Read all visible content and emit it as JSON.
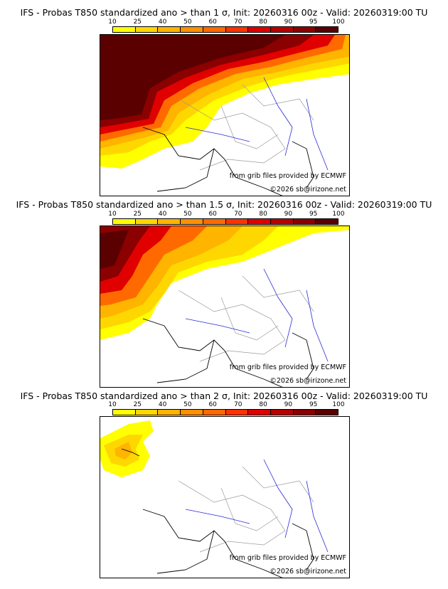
{
  "colorbar": {
    "labels": [
      "10",
      "25",
      "40",
      "50",
      "60",
      "70",
      "80",
      "90",
      "95",
      "100"
    ],
    "colors": [
      "#ffff00",
      "#ffd700",
      "#ffb400",
      "#ff9000",
      "#ff6a00",
      "#ff3300",
      "#e00000",
      "#b80000",
      "#8b0000",
      "#5a0000"
    ]
  },
  "panels": [
    {
      "title": "IFS - Probas T850  standardized ano > than 1 σ, Init: 20260316 00z - Valid: 20260319:00 TU",
      "credit_source": "from grib files provided by ECMWF",
      "credit_copyright": "©2026 sb@irizone.net"
    },
    {
      "title": "IFS - Probas T850  standardized ano > than 1.5 σ, Init: 20260316 00z - Valid: 20260319:00 TU",
      "credit_source": "from grib files provided by ECMWF",
      "credit_copyright": "©2026 sb@irizone.net"
    },
    {
      "title": "IFS - Probas T850  standardized ano > than 2 σ, Init: 20260316 00z - Valid: 20260319:00 TU",
      "credit_source": "from grib files provided by ECMWF",
      "credit_copyright": "©2026 sb@irizone.net"
    }
  ]
}
